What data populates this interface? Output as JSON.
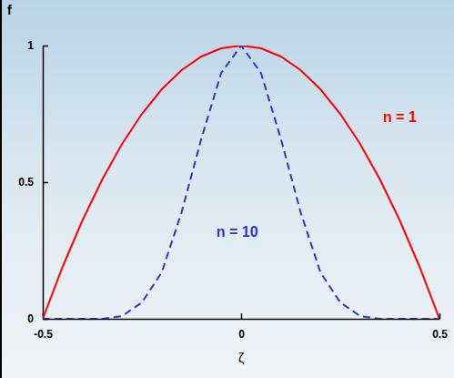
{
  "chart_data": {
    "type": "line",
    "x_label": "ζ",
    "y_label": "f",
    "x": [
      -0.5,
      -0.45,
      -0.4,
      -0.35,
      -0.3,
      -0.25,
      -0.2,
      -0.15,
      -0.1,
      -0.05,
      0,
      0.05,
      0.1,
      0.15,
      0.2,
      0.25,
      0.3,
      0.35,
      0.4,
      0.45,
      0.5
    ],
    "series": [
      {
        "name": "n = 1",
        "color": "#ff0000",
        "line_style": "solid",
        "values": [
          0,
          0.19,
          0.36,
          0.51,
          0.64,
          0.75,
          0.84,
          0.91,
          0.96,
          0.99,
          1,
          0.99,
          0.96,
          0.91,
          0.84,
          0.75,
          0.64,
          0.51,
          0.36,
          0.19,
          0
        ]
      },
      {
        "name": "n = 10",
        "color": "#3333cc",
        "line_style": "dashed",
        "values": [
          0,
          0,
          0,
          0,
          0.01,
          0.06,
          0.17,
          0.39,
          0.66,
          0.9,
          1,
          0.9,
          0.66,
          0.39,
          0.17,
          0.06,
          0.01,
          0,
          0,
          0,
          0
        ]
      }
    ],
    "xlim": [
      -0.5,
      0.5
    ],
    "xticks": [
      -0.5,
      0,
      0.5
    ],
    "ylim": [
      0,
      1
    ],
    "yticks": [
      0,
      0.5,
      1
    ],
    "grid": false
  }
}
